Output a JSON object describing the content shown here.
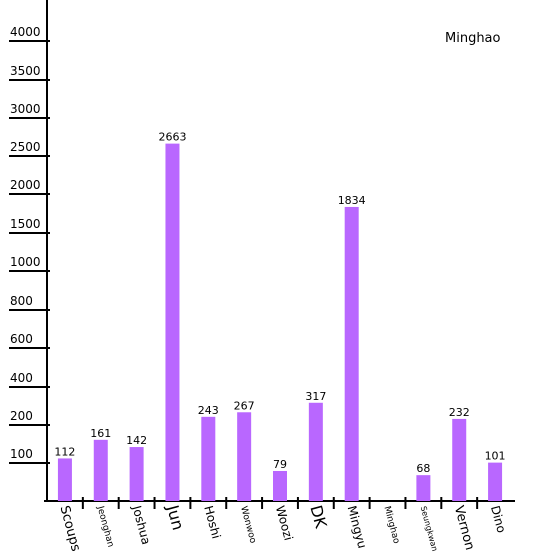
{
  "chart_data": {
    "type": "bar",
    "title": "Minghao",
    "xlabel": "",
    "ylabel": "",
    "categories": [
      "Scoups",
      "Jeonghan",
      "Joshua",
      "Jun",
      "Hoshi",
      "Wonwoo",
      "Woozi",
      "DK",
      "Mingyu",
      "Minghao",
      "Seungkwan",
      "Vernon",
      "Dino"
    ],
    "values": [
      112,
      161,
      142,
      2663,
      243,
      267,
      79,
      317,
      1834,
      null,
      68,
      232,
      101
    ],
    "value_labels": [
      "112",
      "161",
      "142",
      "2663",
      "243",
      "267",
      "79",
      "317",
      "1834",
      "",
      "68",
      "232",
      "101"
    ],
    "y_ticks": [
      100,
      200,
      400,
      600,
      800,
      1000,
      1500,
      2000,
      2500,
      3000,
      3500,
      4000
    ],
    "y_tick_labels": [
      "100",
      "200",
      "400",
      "600",
      "800",
      "1000",
      "1500",
      "2000",
      "2500",
      "3000",
      "3500",
      "4000"
    ],
    "ylim": [
      0,
      4000
    ],
    "grid": false,
    "legend": "none",
    "bar_color": "#b967ff",
    "axis_color": "#000000"
  }
}
